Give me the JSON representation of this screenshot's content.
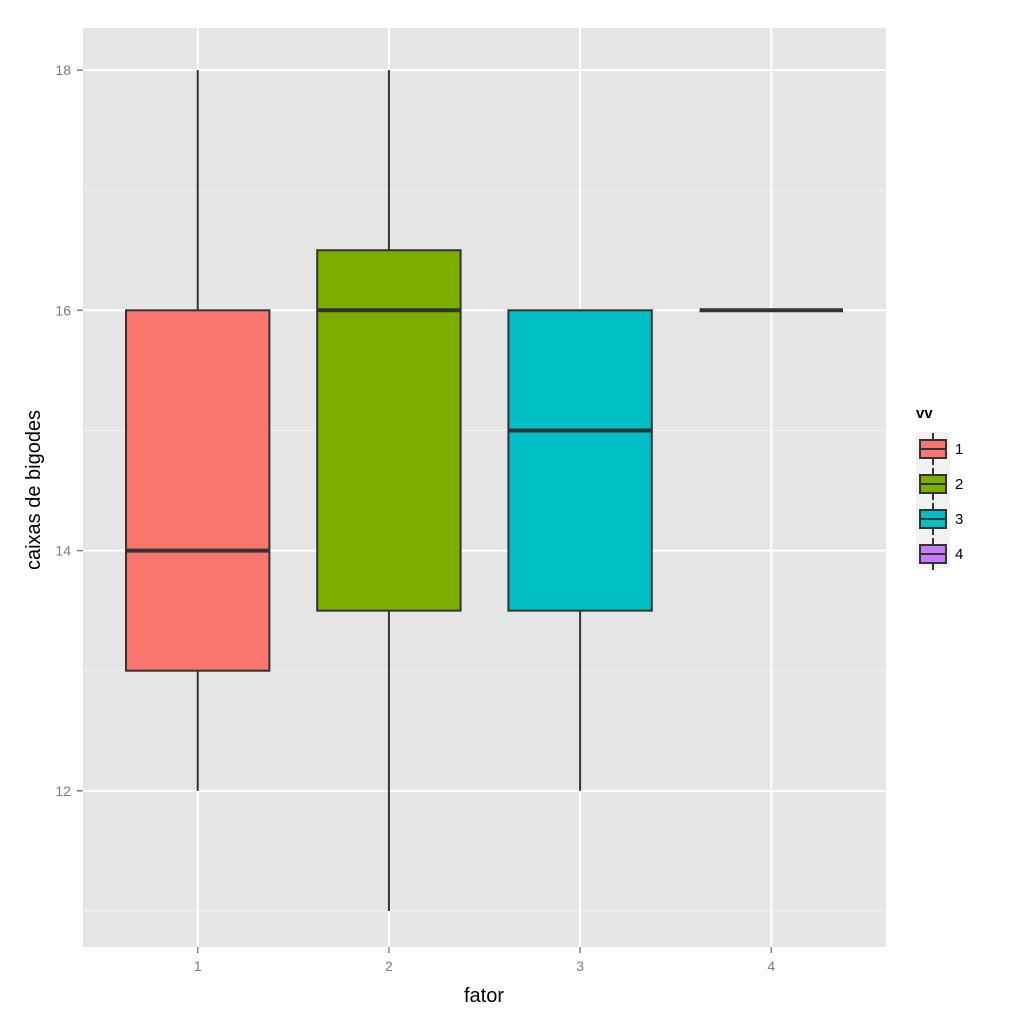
{
  "chart_data": {
    "type": "boxplot",
    "title": "",
    "xlabel": "fator",
    "ylabel": "caixas de bigodes",
    "categories": [
      "1",
      "2",
      "3",
      "4"
    ],
    "ylim": [
      10.7,
      18.35
    ],
    "yticks": [
      12,
      14,
      16,
      18
    ],
    "grid": true,
    "legend": {
      "title": "vv",
      "placement": "right",
      "entries": [
        "1",
        "2",
        "3",
        "4"
      ]
    },
    "series": [
      {
        "name": "1",
        "color": "#F8766D",
        "min": 12,
        "q1": 13,
        "median": 14,
        "q3": 16,
        "max": 18
      },
      {
        "name": "2",
        "color": "#7CAE00",
        "min": 11,
        "q1": 13.5,
        "median": 16,
        "q3": 16.5,
        "max": 18
      },
      {
        "name": "3",
        "color": "#00BFC4",
        "min": 12,
        "q1": 13.5,
        "median": 15,
        "q3": 16,
        "max": 16
      },
      {
        "name": "4",
        "color": "#C77CFF",
        "min": 16,
        "q1": 16,
        "median": 16,
        "q3": 16,
        "max": 16
      }
    ],
    "colors": {
      "panel_background": "#E5E5E5",
      "grid_major": "#FFFFFF",
      "grid_minor": "#F2F2F2",
      "box_outline": "#333333"
    }
  }
}
